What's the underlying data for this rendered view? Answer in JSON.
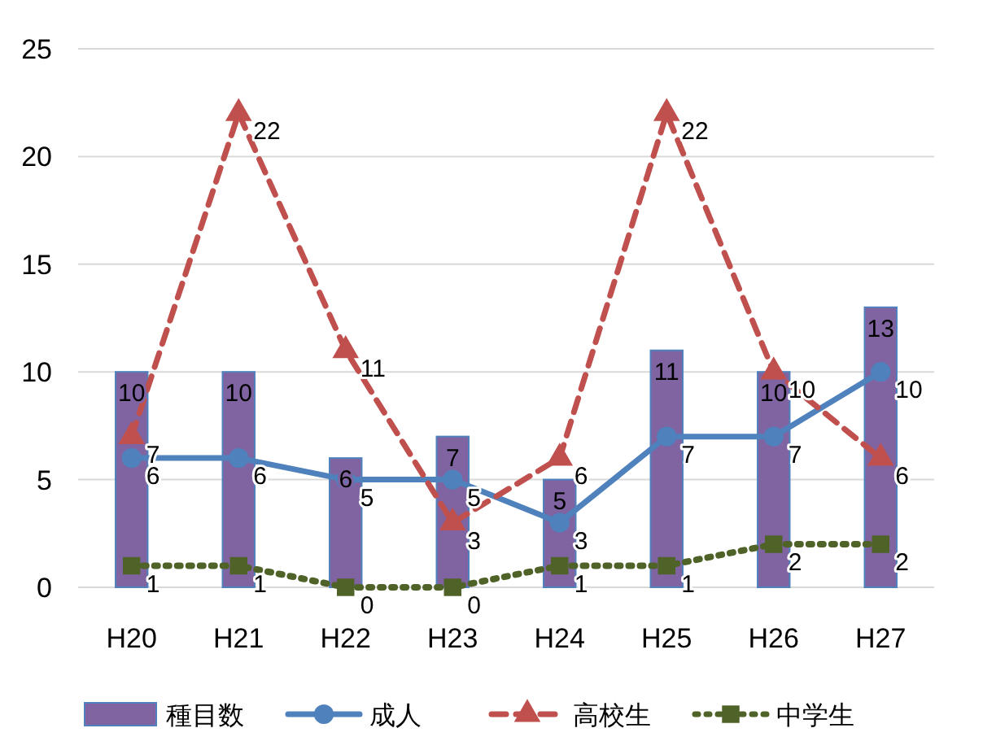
{
  "chart_data": {
    "type": "bar",
    "categories": [
      "H20",
      "H21",
      "H22",
      "H23",
      "H24",
      "H25",
      "H26",
      "H27"
    ],
    "series": [
      {
        "name": "種目数",
        "color": "#8064a2",
        "values": [
          10,
          10,
          6,
          7,
          5,
          11,
          10,
          13
        ]
      },
      {
        "name": "成人",
        "type": "line",
        "color": "#4f81bd",
        "marker": "circle",
        "line_style": "solid",
        "values": [
          6,
          6,
          5,
          5,
          3,
          7,
          7,
          10
        ]
      },
      {
        "name": "高校生",
        "type": "line",
        "color": "#c0504d",
        "marker": "triangle",
        "line_style": "dashed",
        "values": [
          7,
          22,
          11,
          3,
          6,
          22,
          10,
          6
        ]
      },
      {
        "name": "中学生",
        "type": "line",
        "color": "#4f6228",
        "marker": "square",
        "line_style": "dotted",
        "values": [
          1,
          1,
          0,
          0,
          1,
          1,
          2,
          2
        ]
      }
    ],
    "ylim": [
      0,
      25
    ],
    "yticks": [
      0,
      5,
      10,
      15,
      20,
      25
    ],
    "grid": "y",
    "legend": "bottom",
    "data_labels": true
  }
}
